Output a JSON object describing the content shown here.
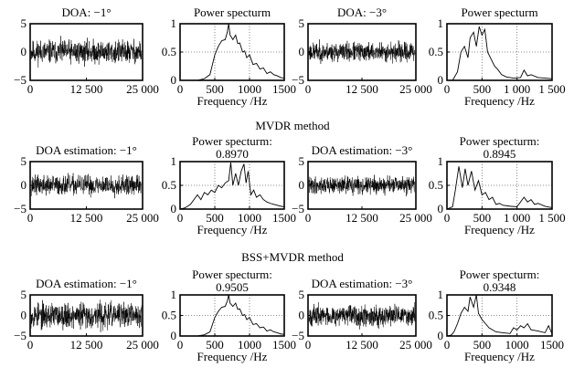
{
  "section_titles": [
    "",
    "MVDR  method",
    "BSS+MVDR method"
  ],
  "chart_data": [
    {
      "type": "line",
      "kind": "signal",
      "title": "DOA: −1°",
      "xlabel": "",
      "xlim": [
        0,
        25000
      ],
      "ylim": [
        -5,
        5
      ],
      "xticks": [
        0,
        12500,
        25000
      ],
      "xtick_labels": [
        "0",
        "12 500",
        "25 000"
      ],
      "yticks": [
        5,
        0,
        -5
      ],
      "ytick_labels": [
        "5",
        "0",
        "−5"
      ],
      "amplitude": 1.0,
      "seed": 11
    },
    {
      "type": "line",
      "kind": "spectrum",
      "title": "Power specturm",
      "xlabel": "Frequency /Hz",
      "xlim": [
        0,
        1500
      ],
      "ylim": [
        0,
        1
      ],
      "xticks": [
        0,
        500,
        1000,
        1500
      ],
      "xtick_labels": [
        "0",
        "500",
        "1000",
        "1500"
      ],
      "yticks": [
        1,
        0.5,
        0
      ],
      "ytick_labels": [
        "1",
        "0.5",
        "0"
      ],
      "grid_x": [
        500,
        1000
      ],
      "grid_y": [
        0.5
      ],
      "x": [
        0,
        250,
        350,
        430,
        500,
        550,
        600,
        650,
        680,
        700,
        720,
        760,
        800,
        830,
        860,
        900,
        930,
        960,
        1000,
        1050,
        1100,
        1150,
        1200,
        1250,
        1300,
        1350,
        1400,
        1450,
        1500
      ],
      "y": [
        0,
        0,
        0.03,
        0.1,
        0.45,
        0.6,
        0.7,
        0.72,
        0.85,
        1.0,
        0.8,
        0.72,
        0.8,
        0.65,
        0.66,
        0.5,
        0.52,
        0.4,
        0.45,
        0.28,
        0.3,
        0.2,
        0.22,
        0.12,
        0.15,
        0.1,
        0.08,
        0.05,
        0.04
      ]
    },
    {
      "type": "line",
      "kind": "signal",
      "title": "DOA: −3°",
      "xlabel": "",
      "xlim": [
        0,
        25000
      ],
      "ylim": [
        -5,
        5
      ],
      "xticks": [
        0,
        12500,
        25000
      ],
      "xtick_labels": [
        "0",
        "12 500",
        "25 000"
      ],
      "yticks": [
        5,
        0,
        -5
      ],
      "ytick_labels": [
        "5",
        "0",
        "−5"
      ],
      "amplitude": 0.8,
      "seed": 23
    },
    {
      "type": "line",
      "kind": "spectrum",
      "title": "Power specturm",
      "xlabel": "Frequency /Hz",
      "xlim": [
        0,
        1500
      ],
      "ylim": [
        0,
        1
      ],
      "xticks": [
        0,
        500,
        1000,
        1500
      ],
      "xtick_labels": [
        "0",
        "500",
        "1 000",
        "1 500"
      ],
      "yticks": [
        1,
        0.5,
        0
      ],
      "ytick_labels": [
        "1",
        "0.5",
        "0"
      ],
      "grid_x": [
        500,
        1000
      ],
      "grid_y": [
        0.5
      ],
      "x": [
        0,
        80,
        150,
        200,
        250,
        300,
        330,
        380,
        420,
        460,
        500,
        540,
        580,
        620,
        680,
        720,
        780,
        850,
        950,
        1050,
        1100,
        1150,
        1200,
        1300,
        1400,
        1500
      ],
      "y": [
        0,
        0,
        0.15,
        0.5,
        0.6,
        0.4,
        0.75,
        0.85,
        0.6,
        0.95,
        0.8,
        0.9,
        0.5,
        0.4,
        0.25,
        0.2,
        0.1,
        0.06,
        0.04,
        0.05,
        0.18,
        0.08,
        0.1,
        0.05,
        0.04,
        0.03
      ]
    },
    {
      "type": "line",
      "kind": "signal",
      "title": "DOA estimation: −1°",
      "xlabel": "",
      "xlim": [
        0,
        25000
      ],
      "ylim": [
        -5,
        5
      ],
      "xticks": [
        0,
        12500,
        25000
      ],
      "xtick_labels": [
        "0",
        "12 500",
        "25 000"
      ],
      "yticks": [
        5,
        0,
        -5
      ],
      "ytick_labels": [
        "5",
        "0",
        "−5"
      ],
      "amplitude": 1.0,
      "seed": 37
    },
    {
      "type": "line",
      "kind": "spectrum",
      "title": "Power specturm:",
      "subtitle": "0.8970",
      "xlabel": "Frequency /Hz",
      "xlim": [
        0,
        1500
      ],
      "ylim": [
        0,
        1
      ],
      "xticks": [
        0,
        500,
        1000,
        1500
      ],
      "xtick_labels": [
        "0",
        "500",
        "1000",
        "1500"
      ],
      "yticks": [
        1,
        0.5,
        0
      ],
      "ytick_labels": [
        "1",
        "0.5",
        "0"
      ],
      "grid_x": [
        500,
        1000
      ],
      "grid_y": [
        0.5
      ],
      "x": [
        0,
        60,
        100,
        150,
        200,
        250,
        300,
        350,
        400,
        450,
        500,
        550,
        600,
        650,
        700,
        730,
        760,
        800,
        840,
        880,
        920,
        950,
        980,
        1020,
        1060,
        1100,
        1150,
        1200,
        1250,
        1300,
        1350,
        1400,
        1450,
        1500
      ],
      "y": [
        0,
        0.02,
        0.05,
        0.1,
        0.2,
        0.3,
        0.2,
        0.35,
        0.3,
        0.4,
        0.35,
        0.5,
        0.45,
        0.55,
        0.6,
        0.98,
        0.5,
        0.75,
        0.5,
        0.8,
        0.95,
        0.55,
        0.8,
        0.3,
        0.4,
        0.25,
        0.3,
        0.2,
        0.15,
        0.12,
        0.1,
        0.08,
        0.06,
        0.05
      ]
    },
    {
      "type": "line",
      "kind": "signal",
      "title": "DOA estimation: −3°",
      "xlabel": "",
      "xlim": [
        0,
        25000
      ],
      "ylim": [
        -5,
        5
      ],
      "xticks": [
        0,
        12500,
        25000
      ],
      "xtick_labels": [
        "0",
        "12 500",
        "25 000"
      ],
      "yticks": [
        5,
        0,
        -5
      ],
      "ytick_labels": [
        "5",
        "0",
        "−5"
      ],
      "amplitude": 0.85,
      "seed": 41
    },
    {
      "type": "line",
      "kind": "spectrum",
      "title": "Power specturm:",
      "subtitle": "0.8945",
      "xlabel": "Frequency /Hz",
      "xlim": [
        0,
        1500
      ],
      "ylim": [
        0,
        1
      ],
      "xticks": [
        0,
        500,
        1000,
        1500
      ],
      "xtick_labels": [
        "0",
        "500",
        "1 000",
        "1 500"
      ],
      "yticks": [
        1,
        0.5,
        0
      ],
      "ytick_labels": [
        "1",
        "0.5",
        "0"
      ],
      "grid_x": [
        500,
        1000
      ],
      "grid_y": [
        0.5
      ],
      "x": [
        0,
        80,
        120,
        170,
        220,
        260,
        300,
        350,
        400,
        450,
        500,
        550,
        600,
        650,
        700,
        750,
        800,
        900,
        1000,
        1100,
        1150,
        1200,
        1250,
        1300,
        1400,
        1500
      ],
      "y": [
        0,
        0.05,
        0.4,
        0.9,
        0.45,
        0.85,
        0.5,
        0.8,
        0.4,
        0.6,
        0.3,
        0.35,
        0.2,
        0.25,
        0.1,
        0.12,
        0.08,
        0.06,
        0.05,
        0.25,
        0.15,
        0.2,
        0.1,
        0.12,
        0.06,
        0.03
      ]
    },
    {
      "type": "line",
      "kind": "signal",
      "title": "DOA estimation: −1°",
      "xlabel": "",
      "xlim": [
        0,
        25000
      ],
      "ylim": [
        -5,
        5
      ],
      "xticks": [
        0,
        12500,
        25000
      ],
      "xtick_labels": [
        "0",
        "12 500",
        "25 000"
      ],
      "yticks": [
        5,
        0,
        -5
      ],
      "ytick_labels": [
        "5",
        "0",
        "−5"
      ],
      "amplitude": 1.5,
      "seed": 53
    },
    {
      "type": "line",
      "kind": "spectrum",
      "title": "Power specturm:",
      "subtitle": "0.9505",
      "xlabel": "Frequency /Hz",
      "xlim": [
        0,
        1500
      ],
      "ylim": [
        0,
        1
      ],
      "xticks": [
        0,
        500,
        1000,
        1500
      ],
      "xtick_labels": [
        "0",
        "500",
        "1000",
        "1500"
      ],
      "yticks": [
        1,
        0.5,
        0
      ],
      "ytick_labels": [
        "1",
        "0.5",
        "0"
      ],
      "grid_x": [
        500,
        1000
      ],
      "grid_y": [
        0.5
      ],
      "x": [
        0,
        250,
        350,
        430,
        500,
        550,
        600,
        650,
        680,
        700,
        720,
        760,
        800,
        830,
        860,
        900,
        930,
        960,
        1000,
        1050,
        1100,
        1150,
        1200,
        1250,
        1300,
        1350,
        1400,
        1450,
        1500
      ],
      "y": [
        0,
        0,
        0.03,
        0.1,
        0.45,
        0.6,
        0.7,
        0.72,
        0.85,
        1.0,
        0.8,
        0.72,
        0.8,
        0.65,
        0.66,
        0.5,
        0.52,
        0.4,
        0.45,
        0.28,
        0.3,
        0.2,
        0.22,
        0.12,
        0.15,
        0.1,
        0.08,
        0.05,
        0.04
      ]
    },
    {
      "type": "line",
      "kind": "signal",
      "title": "DOA estimation: −3°",
      "xlabel": "",
      "xlim": [
        0,
        25000
      ],
      "ylim": [
        -5,
        5
      ],
      "xticks": [
        0,
        12500,
        25000
      ],
      "xtick_labels": [
        "0",
        "12 500",
        "25 000"
      ],
      "yticks": [
        5,
        0,
        -5
      ],
      "ytick_labels": [
        "5",
        "0",
        "−5"
      ],
      "amplitude": 1.2,
      "seed": 67
    },
    {
      "type": "line",
      "kind": "spectrum",
      "title": "Power specturm:",
      "subtitle": "0.9348",
      "xlabel": "Frequency /Hz",
      "xlim": [
        0,
        1500
      ],
      "ylim": [
        0,
        1
      ],
      "xticks": [
        0,
        500,
        1000,
        1500
      ],
      "xtick_labels": [
        "0",
        "500",
        "1000",
        "1500"
      ],
      "yticks": [
        1,
        0.5,
        0
      ],
      "ytick_labels": [
        "1",
        "0.5",
        "0"
      ],
      "grid_x": [
        500,
        1000
      ],
      "grid_y": [
        0.5
      ],
      "x": [
        0,
        60,
        100,
        150,
        200,
        250,
        300,
        330,
        380,
        420,
        450,
        500,
        550,
        600,
        650,
        700,
        800,
        900,
        950,
        1000,
        1050,
        1100,
        1150,
        1200,
        1300,
        1400,
        1450,
        1500
      ],
      "y": [
        0,
        0.02,
        0.1,
        0.3,
        0.55,
        0.7,
        0.6,
        0.95,
        0.7,
        1.0,
        0.55,
        0.4,
        0.3,
        0.2,
        0.15,
        0.1,
        0.08,
        0.06,
        0.2,
        0.15,
        0.25,
        0.2,
        0.3,
        0.15,
        0.12,
        0.08,
        0.25,
        0.05
      ]
    }
  ]
}
